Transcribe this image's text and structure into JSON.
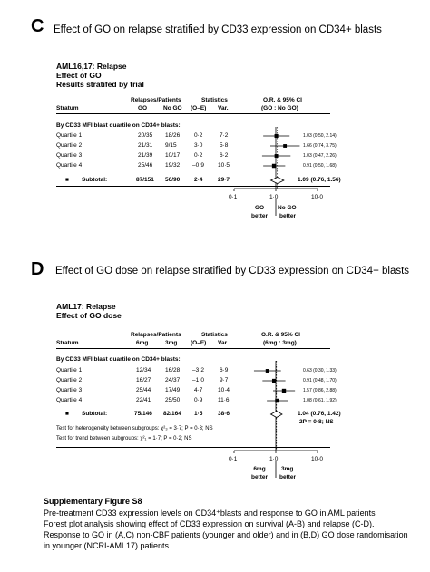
{
  "panel_c": {
    "letter": "C",
    "title": "Effect of GO on relapse stratified by CD33 expression on CD34+ blasts",
    "sub_titles": [
      "AML16,17: Relapse",
      "Effect of GO",
      "Results stratifed by trial"
    ],
    "headers": {
      "stratum": "Stratum",
      "relapses_patients": "Relapses/Patients",
      "col1": "GO",
      "col2": "No GO",
      "statistics": "Statistics",
      "oe": "(O–E)",
      "var": "Var.",
      "or_ci": "O.R. & 95% CI",
      "or_sub": "(GO : No GO)"
    },
    "group_label": "By CD33 MFI blast quartile on CD34+ blasts:",
    "rows": [
      {
        "label": "Quartile 1",
        "c1": "20/35",
        "c2": "18/26",
        "oe": "0·2",
        "var": "7·2",
        "ci_text": "1.03 (0.50, 2.14)"
      },
      {
        "label": "Quartile 2",
        "c1": "21/31",
        "c2": "9/15",
        "oe": "3·0",
        "var": "5·8",
        "ci_text": "1.66 (0.74, 3.75)"
      },
      {
        "label": "Quartile 3",
        "c1": "21/39",
        "c2": "10/17",
        "oe": "0·2",
        "var": "6·2",
        "ci_text": "1.03 (0.47, 2.26)"
      },
      {
        "label": "Quartile 4",
        "c1": "25/46",
        "c2": "19/32",
        "oe": "–0·9",
        "var": "10·5",
        "ci_text": "0.91 (0.50, 1.68)"
      }
    ],
    "subtotal": {
      "label": "Subtotal:",
      "c1": "87/151",
      "c2": "56/90",
      "oe": "2·4",
      "var": "29·7",
      "ci_text": "1.09 (0.76, 1.56)"
    },
    "axis_ticks": [
      "0·1",
      "1·0",
      "10·0"
    ],
    "better_left": [
      "GO",
      "better"
    ],
    "better_right": [
      "No GO",
      "better"
    ]
  },
  "panel_d": {
    "letter": "D",
    "title": "Effect of GO dose on relapse stratified by CD33 expression on CD34+ blasts",
    "sub_titles": [
      "AML17: Relapse",
      "Effect of GO dose"
    ],
    "headers": {
      "stratum": "Stratum",
      "relapses_patients": "Relapses/Patients",
      "col1": "6mg",
      "col2": "3mg",
      "statistics": "Statistics",
      "oe": "(O–E)",
      "var": "Var.",
      "or_ci": "O.R. & 95% CI",
      "or_sub": "(6mg : 3mg)"
    },
    "group_label": "By CD33 MFI blast quartile on CD34+ blasts:",
    "rows": [
      {
        "label": "Quartile 1",
        "c1": "12/34",
        "c2": "16/28",
        "oe": "–3·2",
        "var": "6·9",
        "ci_text": "0.63 (0.30, 1.33)"
      },
      {
        "label": "Quartile 2",
        "c1": "16/27",
        "c2": "24/37",
        "oe": "–1·0",
        "var": "9·7",
        "ci_text": "0.91 (0.48, 1.70)"
      },
      {
        "label": "Quartile 3",
        "c1": "25/44",
        "c2": "17/49",
        "oe": "4·7",
        "var": "10·4",
        "ci_text": "1.57 (0.86, 2.88)"
      },
      {
        "label": "Quartile 4",
        "c1": "22/41",
        "c2": "25/50",
        "oe": "0·9",
        "var": "11·6",
        "ci_text": "1.08 (0.61, 1.92)"
      }
    ],
    "subtotal": {
      "label": "Subtotal:",
      "c1": "75/146",
      "c2": "82/164",
      "oe": "1·5",
      "var": "38·6",
      "ci_text": "1.04 (0.76, 1.42)",
      "p_text": "2P = 0·8; NS"
    },
    "tests": [
      "Test for heterogeneity between subgroups: χ²₃ = 3·7; P = 0·3; NS",
      "Test for trend between subgroups: χ²₁ = 1·7; P = 0·2; NS"
    ],
    "axis_ticks": [
      "0·1",
      "1·0",
      "10·0"
    ],
    "better_left": [
      "6mg",
      "better"
    ],
    "better_right": [
      "3mg",
      "better"
    ]
  },
  "caption": {
    "title": "Supplementary Figure S8",
    "lines": [
      "Pre-treatment CD33 expression levels on CD34⁺blasts and response to GO in AML patients",
      "Forest plot analysis showing effect of CD33 expression on survival (A-B) and relapse (C-D).",
      "Response to GO in (A,C) non-CBF patients (younger and older) and in (B,D) GO dose randomisation",
      "in younger (NCRI-AML17) patients."
    ]
  },
  "chart_data": [
    {
      "type": "forest",
      "scale": "log",
      "xlim": [
        0.1,
        10
      ],
      "reference_line": 1.0,
      "categories": [
        "Quartile 1",
        "Quartile 2",
        "Quartile 3",
        "Quartile 4",
        "Subtotal"
      ],
      "or": [
        1.03,
        1.66,
        1.03,
        0.91,
        1.09
      ],
      "lower": [
        0.5,
        0.74,
        0.47,
        0.5,
        0.76
      ],
      "upper": [
        2.14,
        3.75,
        2.26,
        1.68,
        1.56
      ],
      "variance": [
        7.2,
        5.8,
        6.2,
        10.5,
        29.7
      ],
      "summary_line": 1.09
    },
    {
      "type": "forest",
      "scale": "log",
      "xlim": [
        0.1,
        10
      ],
      "reference_line": 1.0,
      "categories": [
        "Quartile 1",
        "Quartile 2",
        "Quartile 3",
        "Quartile 4",
        "Subtotal"
      ],
      "or": [
        0.63,
        0.91,
        1.57,
        1.08,
        1.04
      ],
      "lower": [
        0.3,
        0.48,
        0.86,
        0.61,
        0.76
      ],
      "upper": [
        1.33,
        1.7,
        2.88,
        1.92,
        1.42
      ],
      "variance": [
        6.9,
        9.7,
        10.4,
        11.6,
        38.6
      ],
      "summary_line": 1.04
    }
  ]
}
